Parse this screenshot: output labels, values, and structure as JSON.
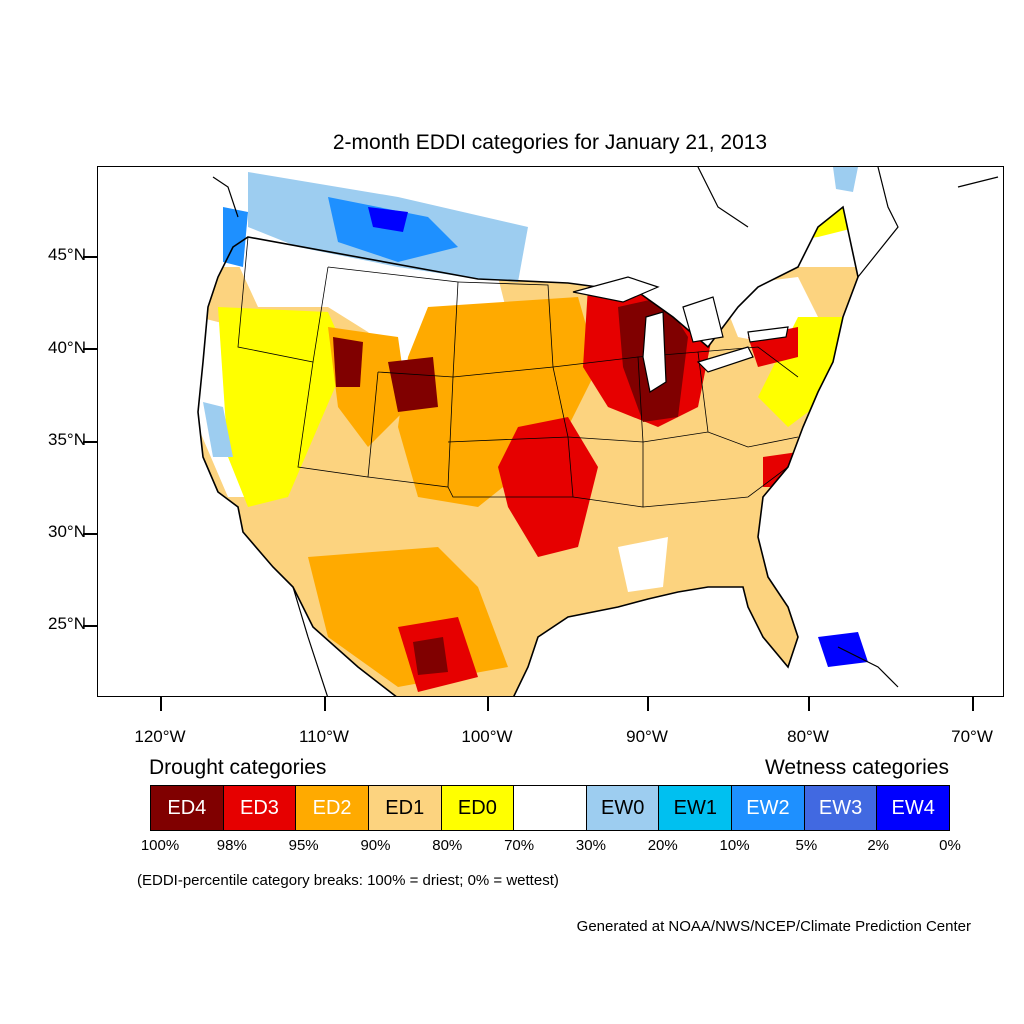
{
  "title": "2-month EDDI categories for January 21, 2013",
  "map": {
    "region": "Contiguous United States and surrounding areas",
    "lat_ticks": [
      "45°N",
      "40°N",
      "35°N",
      "30°N",
      "25°N"
    ],
    "lon_ticks": [
      "120°W",
      "110°W",
      "100°W",
      "90°W",
      "80°W",
      "70°W"
    ]
  },
  "legend": {
    "drought_heading": "Drought categories",
    "wetness_heading": "Wetness categories",
    "categories": [
      {
        "label": "ED4",
        "color": "#800000",
        "text_color": "#ffffff"
      },
      {
        "label": "ED3",
        "color": "#e60000",
        "text_color": "#ffffff"
      },
      {
        "label": "ED2",
        "color": "#ffaa00",
        "text_color": "#ffffff"
      },
      {
        "label": "ED1",
        "color": "#fcd37f",
        "text_color": "#000000"
      },
      {
        "label": "ED0",
        "color": "#ffff00",
        "text_color": "#000000"
      },
      {
        "label": "",
        "color": "#ffffff",
        "text_color": "#000000"
      },
      {
        "label": "EW0",
        "color": "#9dcdf0",
        "text_color": "#000000"
      },
      {
        "label": "EW1",
        "color": "#00c0f0",
        "text_color": "#000000"
      },
      {
        "label": "EW2",
        "color": "#1e90ff",
        "text_color": "#ffffff"
      },
      {
        "label": "EW3",
        "color": "#4169e1",
        "text_color": "#ffffff"
      },
      {
        "label": "EW4",
        "color": "#0000ff",
        "text_color": "#ffffff"
      }
    ],
    "percentiles": [
      "100%",
      "98%",
      "95%",
      "90%",
      "80%",
      "70%",
      "30%",
      "20%",
      "10%",
      "5%",
      "2%",
      "0%"
    ]
  },
  "note": "(EDDI-percentile category breaks: 100% = driest; 0% = wettest)",
  "credit": "Generated at NOAA/NWS/NCEP/Climate Prediction Center"
}
